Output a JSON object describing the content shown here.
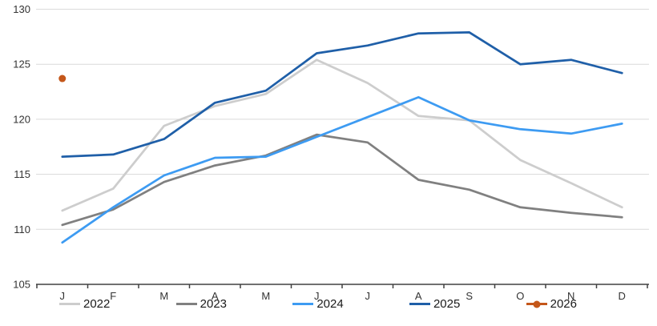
{
  "chart_data": {
    "type": "line",
    "title": "",
    "xlabel": "",
    "ylabel": "",
    "x_tick_labels": [
      "J",
      "F",
      "M",
      "A",
      "M",
      "J",
      "J",
      "A",
      "S",
      "O",
      "N",
      "D"
    ],
    "ylim": [
      105,
      130
    ],
    "y_ticks": [
      105,
      110,
      115,
      120,
      125,
      130
    ],
    "y_tick_labels": [
      "105",
      "110",
      "115",
      "120",
      "125",
      "130"
    ],
    "grid": "horizontal",
    "legend_position": "bottom",
    "series": [
      {
        "name": "2022",
        "color": "#cdcdcd",
        "marker": "none",
        "values": [
          111.7,
          113.7,
          119.4,
          121.2,
          122.3,
          125.4,
          123.3,
          120.3,
          119.9,
          116.3,
          114.2,
          112.0
        ]
      },
      {
        "name": "2023",
        "color": "#808080",
        "marker": "none",
        "values": [
          110.4,
          111.8,
          114.3,
          115.8,
          116.7,
          118.6,
          117.9,
          114.5,
          113.6,
          112.0,
          111.5,
          111.1
        ]
      },
      {
        "name": "2024",
        "color": "#3d9bf2",
        "marker": "none",
        "values": [
          108.8,
          112.0,
          114.9,
          116.5,
          116.6,
          118.4,
          120.2,
          122.0,
          119.9,
          119.1,
          118.7,
          119.6
        ]
      },
      {
        "name": "2025",
        "color": "#1f5fa8",
        "marker": "none",
        "values": [
          116.6,
          116.8,
          118.2,
          121.5,
          122.6,
          126.0,
          126.7,
          127.8,
          127.9,
          125.0,
          125.4,
          124.2
        ]
      },
      {
        "name": "2026",
        "color": "#c4571a",
        "marker": "circle",
        "values": [
          123.7,
          null,
          null,
          null,
          null,
          null,
          null,
          null,
          null,
          null,
          null,
          null
        ]
      }
    ]
  },
  "style": {
    "gridline_color": "#dadada",
    "axis_color": "#404040",
    "tick_label_color": "#333333"
  }
}
